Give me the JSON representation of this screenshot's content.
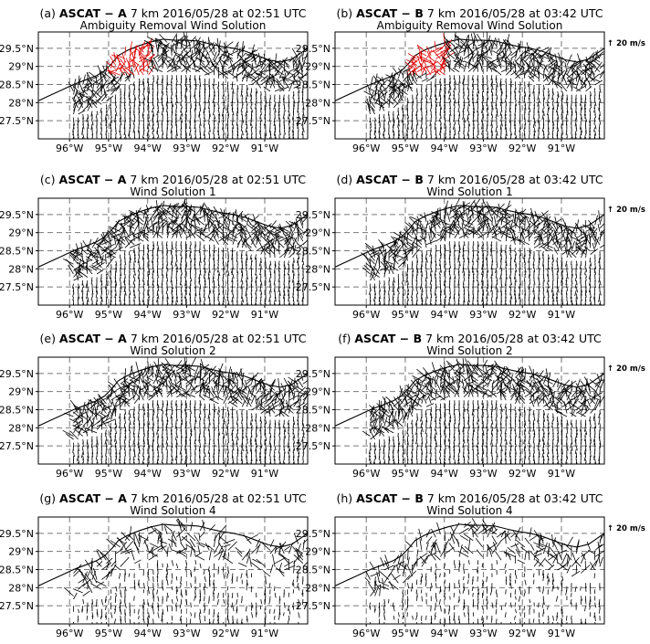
{
  "figure": {
    "scale_label": "↑ 20 m/s",
    "scale_speed_ms": 20
  },
  "panels": [
    {
      "id": "a",
      "prefix": "(a) ",
      "sat": "ASCAT − A",
      "suffix": " 7 km 2016/05/28 at 02:51 UTC",
      "subtitle": "Ambiguity Removal Wind Solution",
      "scale": true
    },
    {
      "id": "b",
      "prefix": "(b) ",
      "sat": "ASCAT − B",
      "suffix": " 7 km 2016/05/28 at 03:42 UTC",
      "subtitle": "Ambiguity Removal Wind Solution",
      "scale": false
    },
    {
      "id": "c",
      "prefix": "(c) ",
      "sat": "ASCAT − A",
      "suffix": " 7 km 2016/05/28 at 02:51 UTC",
      "subtitle": "Wind Solution 1",
      "scale": true
    },
    {
      "id": "d",
      "prefix": "(d) ",
      "sat": "ASCAT − B",
      "suffix": " 7 km 2016/05/28 at 03:42 UTC",
      "subtitle": "Wind Solution 1",
      "scale": false
    },
    {
      "id": "e",
      "prefix": "(e) ",
      "sat": "ASCAT − A",
      "suffix": " 7 km 2016/05/28 at 02:51 UTC",
      "subtitle": "Wind Solution 2",
      "scale": true
    },
    {
      "id": "f",
      "prefix": "(f) ",
      "sat": "ASCAT − B",
      "suffix": " 7 km 2016/05/28 at 03:42 UTC",
      "subtitle": "Wind Solution 2",
      "scale": false
    },
    {
      "id": "g",
      "prefix": "(g) ",
      "sat": "ASCAT − A",
      "suffix": " 7 km 2016/05/28 at 02:51 UTC",
      "subtitle": "Wind Solution 4",
      "scale": true
    },
    {
      "id": "h",
      "prefix": "(h) ",
      "sat": "ASCAT − B",
      "suffix": " 7 km 2016/05/28 at 03:42 UTC",
      "subtitle": "Wind Solution 4",
      "scale": false
    }
  ],
  "chart_data": {
    "type": "scatter",
    "x_ticks": [
      -96,
      -95,
      -94,
      -93,
      -92,
      -91
    ],
    "x_tick_labels": [
      "96°W",
      "95°W",
      "94°W",
      "93°W",
      "92°W",
      "91°W"
    ],
    "y_ticks": [
      27.5,
      28,
      28.5,
      29,
      29.5
    ],
    "y_tick_labels": [
      "27.5°N",
      "28°N",
      "28.5°N",
      "29°N",
      "29.5°N"
    ],
    "xlim": [
      -96.8,
      -89.9
    ],
    "ylim": [
      27.0,
      29.95
    ],
    "grid": true,
    "highlight_color": "#e00000",
    "vector_color": "#000000",
    "coastline": [
      [
        -96.8,
        28.05
      ],
      [
        -96.5,
        28.2
      ],
      [
        -96.2,
        28.35
      ],
      [
        -95.9,
        28.5
      ],
      [
        -95.6,
        28.62
      ],
      [
        -95.3,
        28.75
      ],
      [
        -95.1,
        28.88
      ],
      [
        -94.9,
        29.1
      ],
      [
        -94.75,
        29.3
      ],
      [
        -94.5,
        29.45
      ],
      [
        -94.2,
        29.58
      ],
      [
        -93.9,
        29.68
      ],
      [
        -93.6,
        29.75
      ],
      [
        -93.3,
        29.72
      ],
      [
        -93.0,
        29.72
      ],
      [
        -92.7,
        29.7
      ],
      [
        -92.4,
        29.62
      ],
      [
        -92.1,
        29.55
      ],
      [
        -91.8,
        29.5
      ],
      [
        -91.5,
        29.42
      ],
      [
        -91.2,
        29.3
      ],
      [
        -90.9,
        29.18
      ],
      [
        -90.6,
        29.12
      ],
      [
        -90.3,
        29.2
      ],
      [
        -90.1,
        29.35
      ],
      [
        -89.9,
        29.5
      ]
    ]
  }
}
